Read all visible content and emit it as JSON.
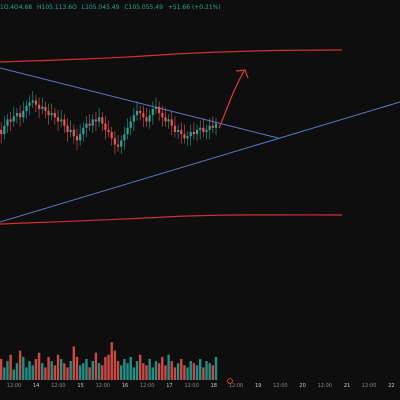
{
  "header": {
    "open": "1O.4O4.68",
    "high": "H105.113.6O",
    "low": "L105.045.49",
    "close": "C105.055.49",
    "change": "+51.66 (+0.21%)"
  },
  "chart_data": {
    "type": "candlestick",
    "title": "",
    "xlabel": "",
    "ylabel": "",
    "grid": false,
    "x_tick_labels": [
      "12:00",
      "14",
      "12:00",
      "15",
      "12:00",
      "16",
      "12:00",
      "17",
      "12:00",
      "18",
      "12:00",
      "19",
      "12:00",
      "20",
      "12:00",
      "21",
      "12:00",
      "22"
    ],
    "bold_tick_labels": [
      "14",
      "15",
      "16",
      "17",
      "18",
      "19",
      "20",
      "21",
      "22"
    ],
    "price_series_close": [
      0.62,
      0.58,
      0.66,
      0.72,
      0.7,
      0.75,
      0.78,
      0.74,
      0.8,
      0.85,
      0.88,
      0.9,
      0.86,
      0.82,
      0.84,
      0.8,
      0.76,
      0.78,
      0.74,
      0.7,
      0.72,
      0.66,
      0.6,
      0.62,
      0.56,
      0.52,
      0.58,
      0.64,
      0.68,
      0.66,
      0.72,
      0.7,
      0.74,
      0.68,
      0.62,
      0.6,
      0.54,
      0.48,
      0.46,
      0.52,
      0.58,
      0.64,
      0.7,
      0.76,
      0.8,
      0.78,
      0.74,
      0.7,
      0.76,
      0.82,
      0.84,
      0.78,
      0.74,
      0.7,
      0.72,
      0.66,
      0.6,
      0.62,
      0.58,
      0.54,
      0.56,
      0.6,
      0.58,
      0.62,
      0.64,
      0.6,
      0.62,
      0.66,
      0.64,
      0.68
    ],
    "volume_series": [
      0.35,
      0.5,
      0.3,
      0.45,
      0.6,
      0.25,
      0.4,
      0.7,
      0.55,
      0.3,
      0.45,
      0.35,
      0.5,
      0.65,
      0.4,
      0.3,
      0.55,
      0.45,
      0.35,
      0.6,
      0.5,
      0.4,
      0.3,
      0.45,
      0.8,
      0.55,
      0.35,
      0.4,
      0.5,
      0.3,
      0.45,
      0.65,
      0.4,
      0.35,
      0.55,
      0.6,
      0.9,
      0.7,
      0.45,
      0.35,
      0.5,
      0.4,
      0.55,
      0.3,
      0.45,
      0.6,
      0.4,
      0.35,
      0.5,
      0.3,
      0.45,
      0.4,
      0.55,
      0.35,
      0.6,
      0.45,
      0.3,
      0.4,
      0.5,
      0.35,
      0.3,
      0.45,
      0.4,
      0.35,
      0.5,
      0.3,
      0.45,
      0.4,
      0.35,
      0.55
    ],
    "colors": {
      "up": "#26a69a",
      "down": "#ef5350",
      "trendline": "#5a79c9",
      "channel": "#d32f2f",
      "arrow": "#e53935",
      "background": "#0e0e0e"
    }
  }
}
